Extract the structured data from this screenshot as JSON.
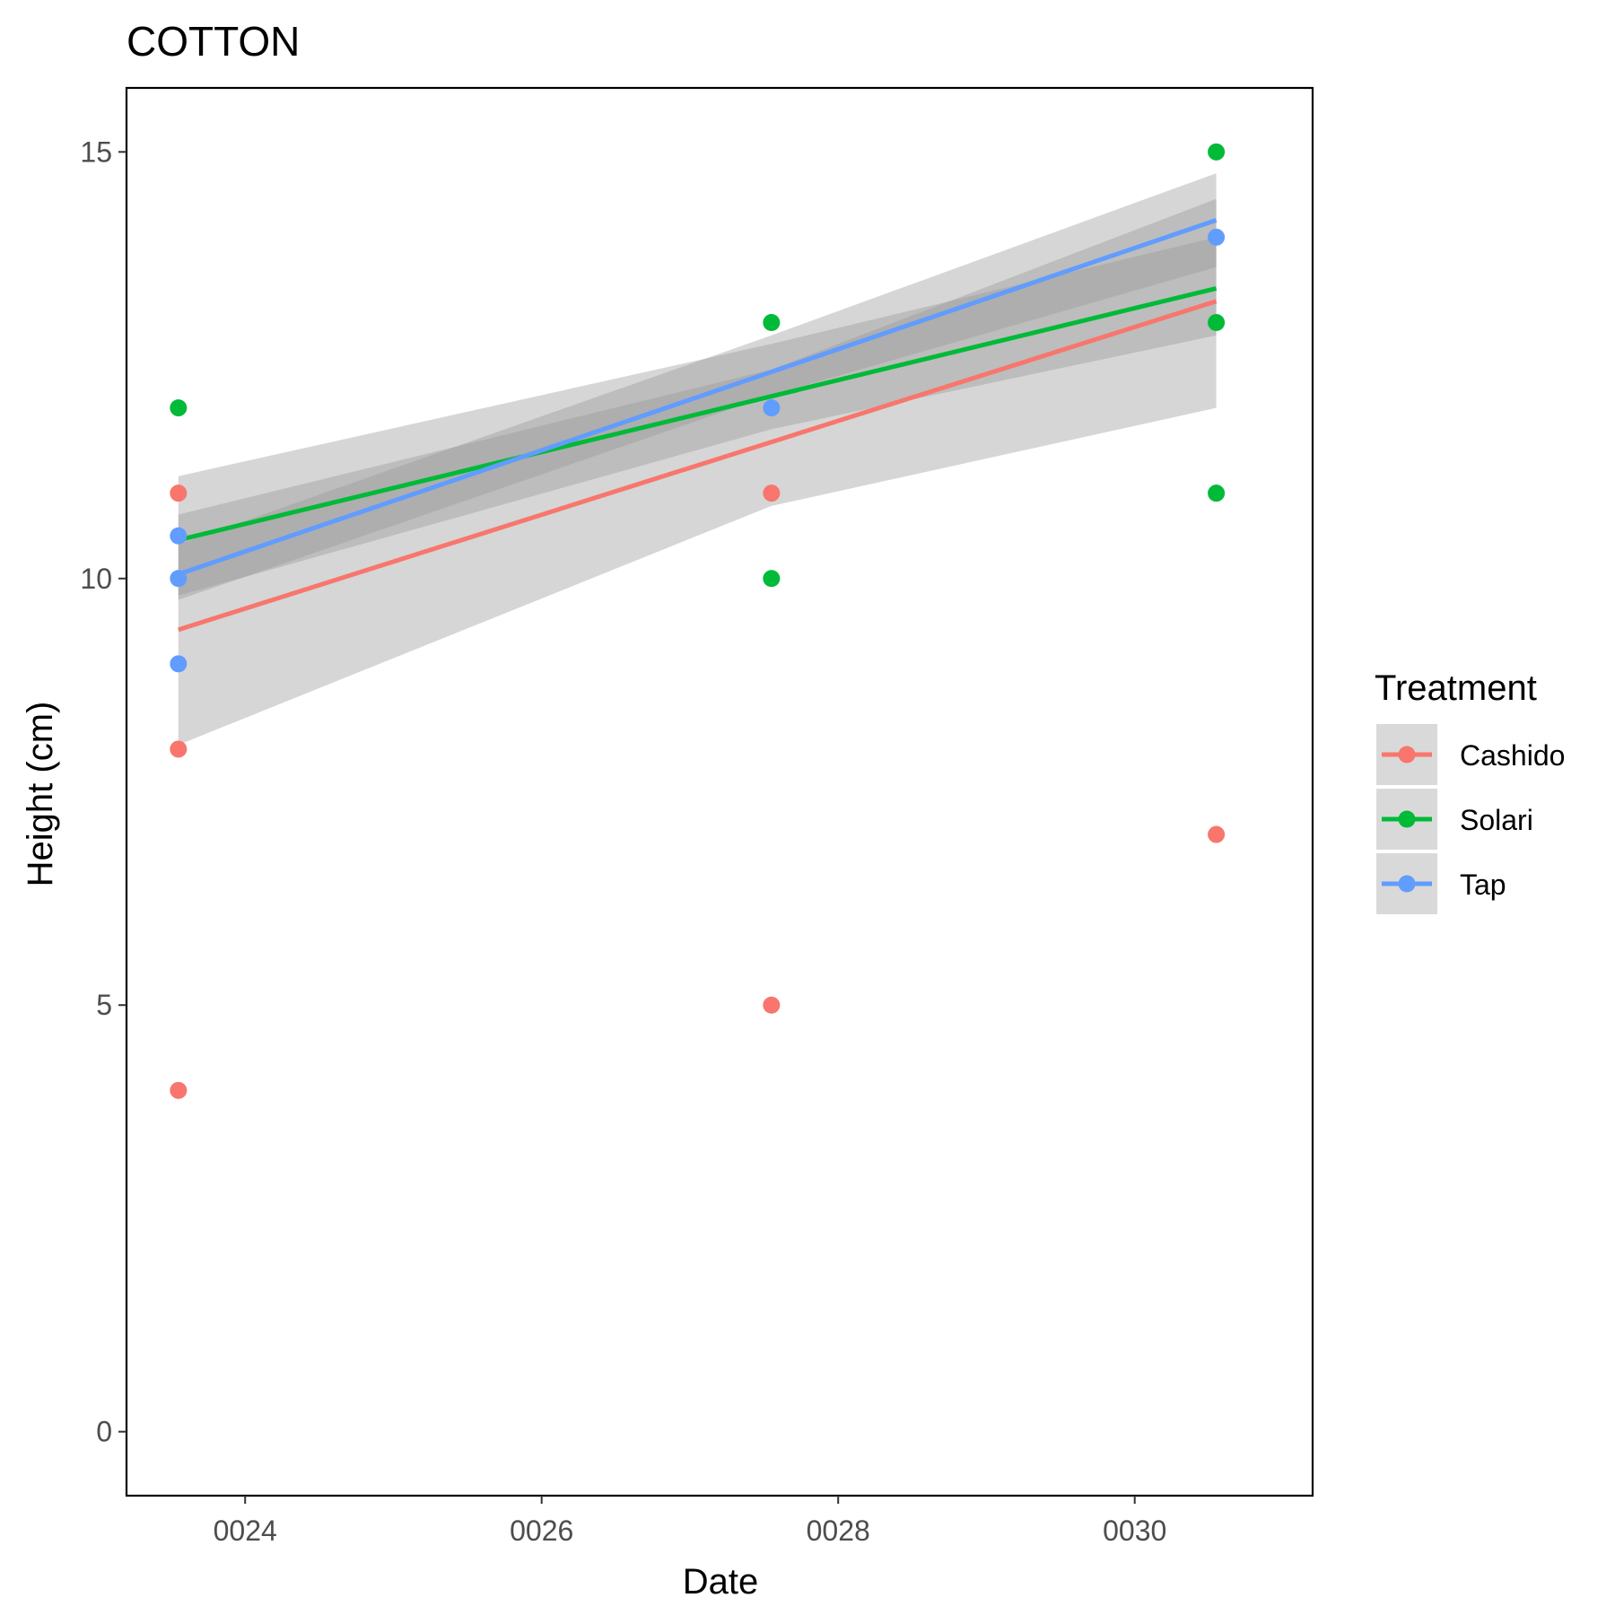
{
  "chart_data": {
    "type": "scatter",
    "title": "COTTON",
    "xlabel": "Date",
    "ylabel": "Height (cm)",
    "xlim": [
      23.2,
      31.2
    ],
    "ylim": [
      -0.75,
      15.75
    ],
    "x_ticks": [
      {
        "value": 24,
        "label": "0024"
      },
      {
        "value": 26,
        "label": "0026"
      },
      {
        "value": 28,
        "label": "0028"
      },
      {
        "value": 30,
        "label": "0030"
      }
    ],
    "y_ticks": [
      {
        "value": 0,
        "label": "0"
      },
      {
        "value": 5,
        "label": "5"
      },
      {
        "value": 10,
        "label": "10"
      },
      {
        "value": 15,
        "label": "15"
      }
    ],
    "grid": false,
    "legend": {
      "title": "Treatment",
      "position": "right"
    },
    "series": [
      {
        "name": "Cashido",
        "color": "#F8766D",
        "points": [
          [
            23.55,
            11
          ],
          [
            23.55,
            8
          ],
          [
            23.55,
            4
          ],
          [
            27.55,
            11
          ],
          [
            27.55,
            5
          ],
          [
            30.55,
            7
          ]
        ],
        "fit": [
          [
            23.55,
            9.4
          ],
          [
            30.55,
            13.25
          ]
        ],
        "band": {
          "x": [
            23.55,
            27.55,
            30.55
          ],
          "lower": [
            8.05,
            10.85,
            12.0
          ],
          "upper": [
            10.75,
            12.45,
            14.45
          ]
        }
      },
      {
        "name": "Solari",
        "color": "#00BA38",
        "points": [
          [
            23.55,
            12
          ],
          [
            27.55,
            13
          ],
          [
            27.55,
            10
          ],
          [
            30.55,
            15
          ],
          [
            30.55,
            13
          ],
          [
            30.55,
            11
          ]
        ],
        "fit": [
          [
            23.55,
            10.45
          ],
          [
            30.55,
            13.4
          ]
        ],
        "band": {
          "x": [
            23.55,
            27.55,
            30.55
          ],
          "lower": [
            9.8,
            11.75,
            12.85
          ],
          "upper": [
            11.2,
            12.75,
            14.0
          ]
        }
      },
      {
        "name": "Tap",
        "color": "#619CFF",
        "points": [
          [
            23.55,
            10.5
          ],
          [
            23.55,
            10
          ],
          [
            23.55,
            9
          ],
          [
            27.55,
            12
          ],
          [
            30.55,
            14
          ]
        ],
        "fit": [
          [
            23.55,
            10.05
          ],
          [
            30.55,
            14.2
          ]
        ],
        "band": {
          "x": [
            23.55,
            27.55,
            30.55
          ],
          "lower": [
            9.75,
            12.15,
            13.65
          ],
          "upper": [
            10.4,
            12.85,
            14.75
          ]
        }
      }
    ]
  }
}
